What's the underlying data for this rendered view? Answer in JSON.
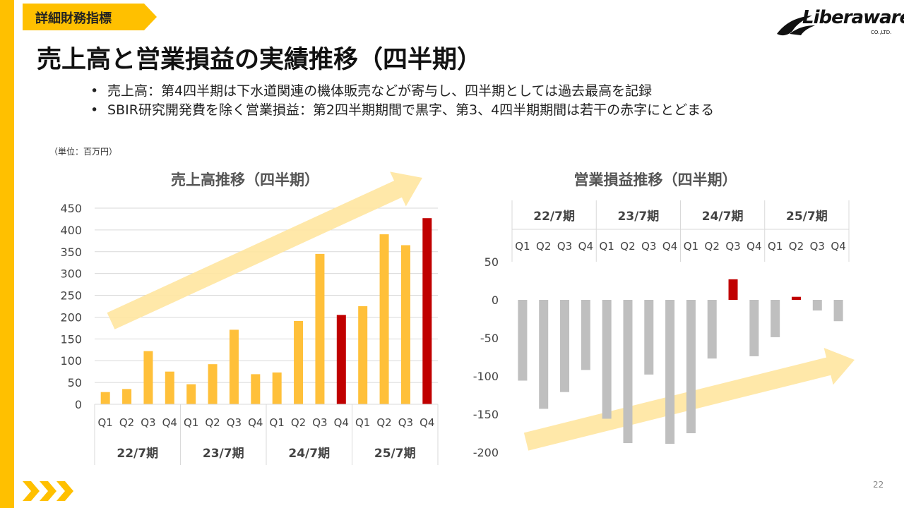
{
  "section_tag": "詳細財務指標",
  "logo": {
    "name": "Liberaware",
    "sub": "CO.,LTD."
  },
  "title": "売上高と営業損益の実績推移（四半期）",
  "bullets": [
    "売上高：第4四半期は下水道関連の機体販売などが寄与し、四半期としては過去最高を記録",
    "SBIR研究開発費を除く営業損益：第2四半期期間で黒字、第3、4四半期期間は若干の赤字にとどまる"
  ],
  "unit_label": "（単位：百万円）",
  "page_number": "22",
  "colors": {
    "accent": "#ffc000",
    "bar_yellow": "#ffc03a",
    "bar_red": "#c00000",
    "bar_gray": "#bfbfbf",
    "arrow": "#ffe5a0"
  },
  "chart_data": [
    {
      "type": "bar",
      "title": "売上高推移（四半期）",
      "quarters": [
        "Q1",
        "Q2",
        "Q3",
        "Q4"
      ],
      "periods": [
        "22/7期",
        "23/7期",
        "24/7期",
        "25/7期"
      ],
      "categories": [
        "22/7期 Q1",
        "22/7期 Q2",
        "22/7期 Q3",
        "22/7期 Q4",
        "23/7期 Q1",
        "23/7期 Q2",
        "23/7期 Q3",
        "23/7期 Q4",
        "24/7期 Q1",
        "24/7期 Q2",
        "24/7期 Q3",
        "24/7期 Q4",
        "25/7期 Q1",
        "25/7期 Q2",
        "25/7期 Q3",
        "25/7期 Q4"
      ],
      "values": [
        28,
        35,
        122,
        75,
        46,
        92,
        171,
        69,
        73,
        191,
        345,
        205,
        225,
        390,
        365,
        427
      ],
      "highlight": [
        false,
        false,
        false,
        false,
        false,
        false,
        false,
        false,
        false,
        false,
        false,
        true,
        false,
        false,
        false,
        true
      ],
      "ylim": [
        0,
        450
      ],
      "yticks": [
        0,
        50,
        100,
        150,
        200,
        250,
        300,
        350,
        400,
        450
      ],
      "grid": true
    },
    {
      "type": "bar",
      "title": "営業損益推移（四半期）",
      "quarters": [
        "Q1",
        "Q2",
        "Q3",
        "Q4"
      ],
      "periods": [
        "22/7期",
        "23/7期",
        "24/7期",
        "25/7期"
      ],
      "categories": [
        "22/7期 Q1",
        "22/7期 Q2",
        "22/7期 Q3",
        "22/7期 Q4",
        "23/7期 Q1",
        "23/7期 Q2",
        "23/7期 Q3",
        "23/7期 Q4",
        "24/7期 Q1",
        "24/7期 Q2",
        "24/7期 Q3",
        "24/7期 Q4",
        "25/7期 Q1",
        "25/7期 Q2",
        "25/7期 Q3",
        "25/7期 Q4"
      ],
      "values": [
        -106,
        -143,
        -121,
        -92,
        -156,
        -188,
        -98,
        -189,
        -175,
        -77,
        27,
        -74,
        -49,
        4,
        -14,
        -28
      ],
      "highlight": [
        false,
        false,
        false,
        false,
        false,
        false,
        false,
        false,
        false,
        false,
        true,
        false,
        false,
        true,
        false,
        false
      ],
      "ylim": [
        -200,
        50
      ],
      "yticks": [
        50,
        0,
        -50,
        -100,
        -150,
        -200
      ],
      "grid": false
    }
  ]
}
